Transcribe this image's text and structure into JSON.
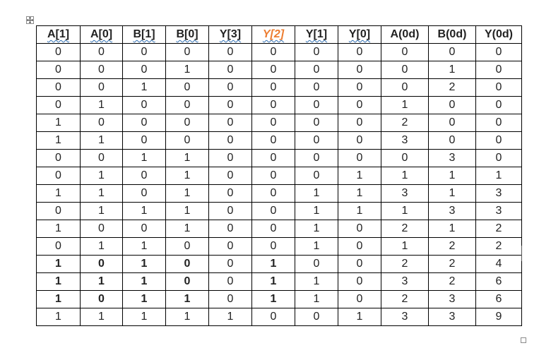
{
  "headers": [
    "A[1]",
    "A[0]",
    "B[1]",
    "B[0]",
    "Y[3]",
    "Y[2]",
    "Y[1]",
    "Y[0]",
    "A(0d)",
    "B(0d)",
    "Y(0d)"
  ],
  "rows": [
    [
      "0",
      "0",
      "0",
      "0",
      "0",
      "0",
      "0",
      "0",
      "0",
      "0",
      "0"
    ],
    [
      "0",
      "0",
      "0",
      "1",
      "0",
      "0",
      "0",
      "0",
      "0",
      "1",
      "0"
    ],
    [
      "0",
      "0",
      "1",
      "0",
      "0",
      "0",
      "0",
      "0",
      "0",
      "2",
      "0"
    ],
    [
      "0",
      "1",
      "0",
      "0",
      "0",
      "0",
      "0",
      "0",
      "1",
      "0",
      "0"
    ],
    [
      "1",
      "0",
      "0",
      "0",
      "0",
      "0",
      "0",
      "0",
      "2",
      "0",
      "0"
    ],
    [
      "1",
      "1",
      "0",
      "0",
      "0",
      "0",
      "0",
      "0",
      "3",
      "0",
      "0"
    ],
    [
      "0",
      "0",
      "1",
      "1",
      "0",
      "0",
      "0",
      "0",
      "0",
      "3",
      "0"
    ],
    [
      "0",
      "1",
      "0",
      "1",
      "0",
      "0",
      "0",
      "1",
      "1",
      "1",
      "1"
    ],
    [
      "1",
      "1",
      "0",
      "1",
      "0",
      "0",
      "1",
      "1",
      "3",
      "1",
      "3"
    ],
    [
      "0",
      "1",
      "1",
      "1",
      "0",
      "0",
      "1",
      "1",
      "1",
      "3",
      "3"
    ],
    [
      "1",
      "0",
      "0",
      "1",
      "0",
      "0",
      "1",
      "0",
      "2",
      "1",
      "2"
    ],
    [
      "0",
      "1",
      "1",
      "0",
      "0",
      "0",
      "1",
      "0",
      "1",
      "2",
      "2"
    ],
    [
      "1",
      "0",
      "1",
      "0",
      "0",
      "1",
      "0",
      "0",
      "2",
      "2",
      "4"
    ],
    [
      "1",
      "1",
      "1",
      "0",
      "0",
      "1",
      "1",
      "0",
      "3",
      "2",
      "6"
    ],
    [
      "1",
      "0",
      "1",
      "1",
      "0",
      "1",
      "1",
      "0",
      "2",
      "3",
      "6"
    ],
    [
      "1",
      "1",
      "1",
      "1",
      "1",
      "0",
      "0",
      "1",
      "3",
      "3",
      "9"
    ]
  ],
  "highlight_color": "#ed7d31",
  "spellcheck_underline_color": "#2f6fb3",
  "icons": {
    "table_move_handle": "move-arrows-icon",
    "table_resize_handle": "resize-square-icon"
  }
}
